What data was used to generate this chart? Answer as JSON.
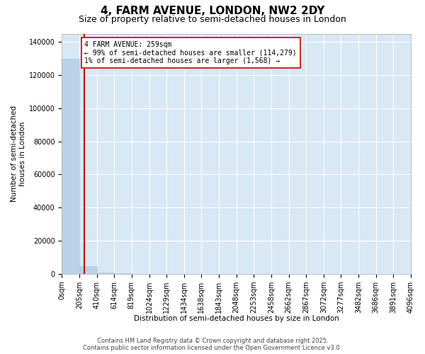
{
  "title": "4, FARM AVENUE, LONDON, NW2 2DY",
  "subtitle": "Size of property relative to semi-detached houses in London",
  "xlabel": "Distribution of semi-detached houses by size in London",
  "ylabel": "Number of semi-detached\nhouses in London",
  "property_size": 259,
  "annotation_text_line1": "4 FARM AVENUE: 259sqm",
  "annotation_text_line2": "← 99% of semi-detached houses are smaller (114,279)",
  "annotation_text_line3": "1% of semi-detached houses are larger (1,568) →",
  "bar_color": "#bad2e8",
  "bar_edge_color": "#a8c4de",
  "vline_color": "#cc0000",
  "annotation_box_edge_color": "#cc0000",
  "background_color": "#ffffff",
  "grid_color": "#ffffff",
  "plot_bg_color": "#d8e8f5",
  "footer_line1": "Contains HM Land Registry data © Crown copyright and database right 2025.",
  "footer_line2": "Contains public sector information licensed under the Open Government Licence v3.0.",
  "bin_edges": [
    0,
    205,
    410,
    614,
    819,
    1024,
    1229,
    1434,
    1638,
    1843,
    2048,
    2253,
    2458,
    2662,
    2867,
    3072,
    3277,
    3482,
    3686,
    3891,
    4096
  ],
  "bin_labels": [
    "0sqm",
    "205sqm",
    "410sqm",
    "614sqm",
    "819sqm",
    "1024sqm",
    "1229sqm",
    "1434sqm",
    "1638sqm",
    "1843sqm",
    "2048sqm",
    "2253sqm",
    "2458sqm",
    "2662sqm",
    "2867sqm",
    "3072sqm",
    "3277sqm",
    "3482sqm",
    "3686sqm",
    "3891sqm",
    "4096sqm"
  ],
  "bar_heights": [
    130000,
    4500,
    1000,
    350,
    130,
    55,
    28,
    12,
    7,
    4,
    2,
    2,
    1,
    1,
    1,
    0,
    0,
    0,
    0,
    0
  ],
  "ylim": [
    0,
    145000
  ],
  "yticks": [
    0,
    20000,
    40000,
    60000,
    80000,
    100000,
    120000,
    140000
  ],
  "title_fontsize": 11,
  "subtitle_fontsize": 9,
  "axis_label_fontsize": 7.5,
  "tick_fontsize": 7,
  "annotation_fontsize": 7,
  "footer_fontsize": 6
}
